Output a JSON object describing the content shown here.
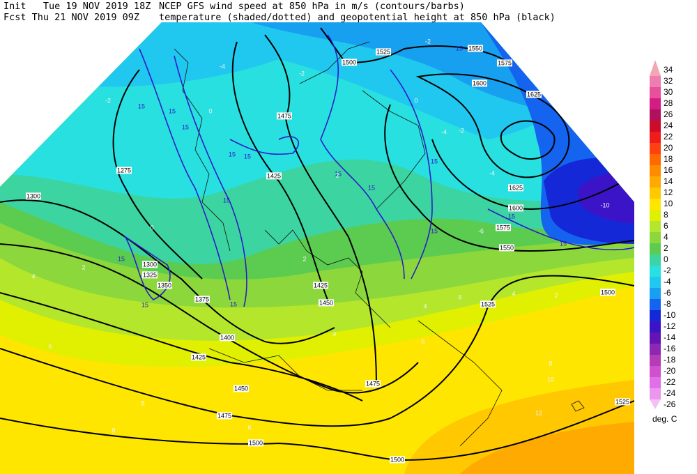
{
  "header": {
    "init_label": "Init   Tue 19 NOV 2019 18Z",
    "fcst_label": "Fcst Thu 21 NOV 2019 09Z",
    "line1": "NCEP GFS wind speed at 850 hPa in m/s (contours/barbs)",
    "line2": "temperature (shaded/dotted) and geopotential height at 850 hPa (black)"
  },
  "colorbar": {
    "levels": [
      34,
      32,
      30,
      28,
      26,
      24,
      22,
      20,
      18,
      16,
      14,
      12,
      10,
      8,
      6,
      4,
      2,
      0,
      -2,
      -4,
      -6,
      -8,
      -10,
      -12,
      -14,
      -16,
      -18,
      -20,
      -22,
      -24,
      -26
    ],
    "colors": [
      "#f4a6b4",
      "#ee7eb0",
      "#e8509e",
      "#d41c84",
      "#b0105c",
      "#cc0c28",
      "#f01c1c",
      "#ff4010",
      "#ff6a00",
      "#ff8c00",
      "#ffaa00",
      "#ffc800",
      "#ffe600",
      "#e0f000",
      "#b4e62c",
      "#8cd83c",
      "#5ccc50",
      "#3cd4a0",
      "#28e0e0",
      "#20c8f0",
      "#18a0f0",
      "#1464f0",
      "#1428d8",
      "#3c14c8",
      "#6414b4",
      "#8c28b4",
      "#b43cb4",
      "#d050d0",
      "#e070e8",
      "#ec96f0",
      "#f4c0f4"
    ],
    "unit": "deg. C"
  },
  "map_labels": {
    "height": [
      1275,
      1300,
      1300,
      1325,
      1350,
      1375,
      1400,
      1425,
      1425,
      1425,
      1450,
      1450,
      1475,
      1475,
      1475,
      1500,
      1500,
      1500,
      1500,
      1525,
      1525,
      1525,
      1550,
      1550,
      1575,
      1575,
      1600,
      1600,
      1625,
      1625
    ],
    "wind": [
      15,
      15,
      15,
      15,
      15,
      15,
      15,
      15,
      15,
      15,
      15,
      15,
      15,
      15,
      15,
      15
    ],
    "temperature": [
      -2,
      -2,
      -2,
      -4,
      -4,
      -4,
      -2,
      -10,
      -6,
      0,
      0,
      0,
      2,
      2,
      2,
      4,
      4,
      4,
      4,
      6,
      6,
      6,
      6,
      8,
      8,
      8,
      10,
      12,
      2
    ]
  }
}
